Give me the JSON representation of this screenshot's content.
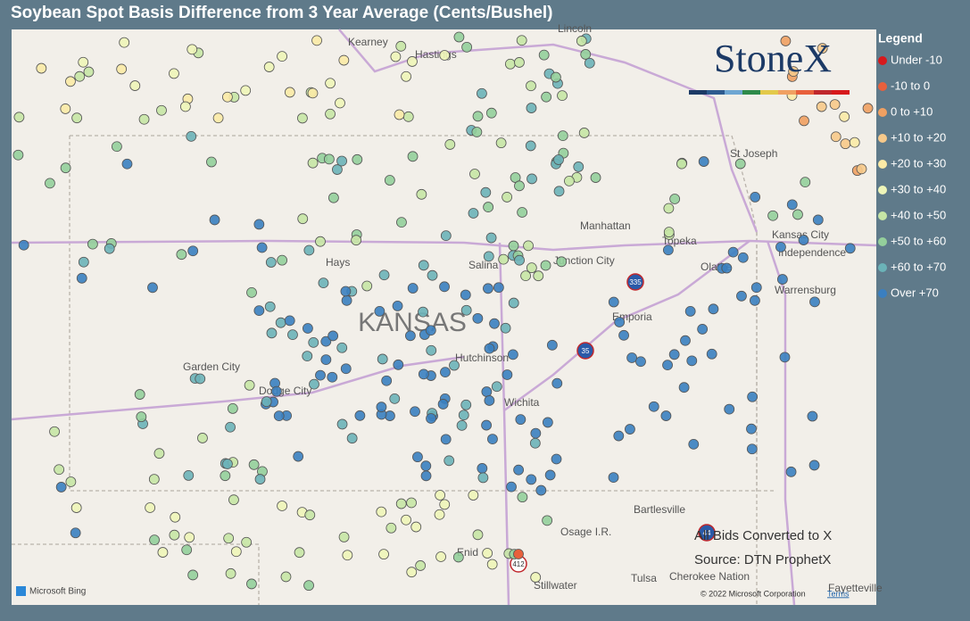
{
  "title": "Soybean Spot Basis Difference from 3 Year Average (Cents/Bushel)",
  "legend": {
    "title": "Legend",
    "items": [
      {
        "label": "Under -10",
        "color": "#d7191c"
      },
      {
        "label": "-10 to 0",
        "color": "#e8603c"
      },
      {
        "label": "0 to +10",
        "color": "#f0a062"
      },
      {
        "label": "+10 to +20",
        "color": "#f7c98a"
      },
      {
        "label": "+20 to +30",
        "color": "#fbeaa6"
      },
      {
        "label": "+30 to +40",
        "color": "#eef5b8"
      },
      {
        "label": "+40 to +50",
        "color": "#c6e5a5"
      },
      {
        "label": "+50 to +60",
        "color": "#94cf9b"
      },
      {
        "label": "+60 to +70",
        "color": "#6bb3b8"
      },
      {
        "label": "Over +70",
        "color": "#3a7fc0"
      }
    ]
  },
  "map": {
    "state_label": "KANSAS",
    "places": [
      "Kearney",
      "Hastings",
      "Lincoln",
      "St Joseph",
      "Manhattan",
      "Topeka",
      "Kansas City",
      "Independence",
      "Hays",
      "Salina",
      "Junction City",
      "Olathe",
      "Warrensburg",
      "Emporia",
      "Hutchinson",
      "Garden City",
      "Dodge City",
      "Wichita",
      "Bartlesville",
      "Osage I.R.",
      "Enid",
      "Stillwater",
      "Tulsa",
      "Cherokee Nation",
      "Fayetteville"
    ],
    "shields": [
      "335",
      "35",
      "412",
      "44"
    ]
  },
  "notes": [
    "All Bids Converted to X",
    "Source: DTN ProphetX"
  ],
  "logo": "StoneX",
  "attribution": {
    "provider": "Microsoft Bing",
    "copyright": "© 2022 Microsoft Corporation",
    "terms": "Terms"
  }
}
